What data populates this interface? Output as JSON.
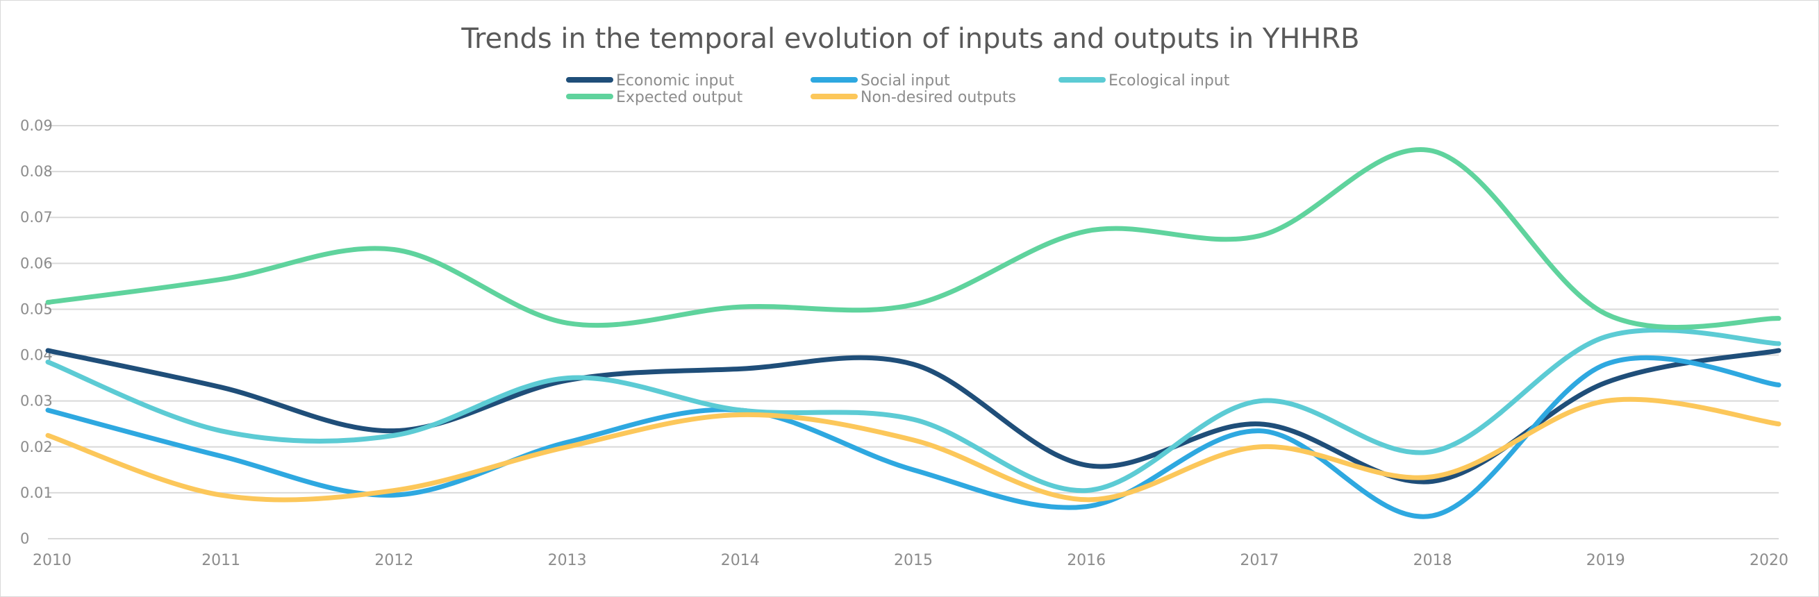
{
  "chart_data": {
    "type": "line",
    "title": "Trends in the temporal evolution of inputs and outputs in YHHRB",
    "xlabel": "",
    "ylabel": "",
    "categories": [
      "2010",
      "2011",
      "2012",
      "2013",
      "2014",
      "2015",
      "2016",
      "2017",
      "2018",
      "2019",
      "2020"
    ],
    "ylim": [
      0,
      0.09
    ],
    "yticks": [
      "0",
      "0.01",
      "0.02",
      "0.03",
      "0.04",
      "0.05",
      "0.06",
      "0.07",
      "0.08",
      "0.09"
    ],
    "grid": true,
    "smooth": true,
    "legend_position": "top",
    "series": [
      {
        "name": "Economic input",
        "color": "#1f4e79",
        "values": [
          0.041,
          0.033,
          0.0235,
          0.0345,
          0.037,
          0.038,
          0.016,
          0.025,
          0.0125,
          0.034,
          0.041
        ]
      },
      {
        "name": "Social input",
        "color": "#2ea8e0",
        "values": [
          0.028,
          0.018,
          0.0095,
          0.021,
          0.028,
          0.015,
          0.007,
          0.0235,
          0.005,
          0.038,
          0.0335
        ]
      },
      {
        "name": "Ecological input",
        "color": "#5ccbd4",
        "values": [
          0.0385,
          0.0235,
          0.0225,
          0.035,
          0.028,
          0.026,
          0.0105,
          0.03,
          0.019,
          0.044,
          0.0425
        ]
      },
      {
        "name": "Expected output",
        "color": "#5fd39d",
        "values": [
          0.0515,
          0.0565,
          0.063,
          0.047,
          0.0505,
          0.051,
          0.067,
          0.066,
          0.0845,
          0.049,
          0.048
        ]
      },
      {
        "name": "Non-desired outputs",
        "color": "#fcc75a",
        "values": [
          0.0225,
          0.0095,
          0.0105,
          0.02,
          0.027,
          0.0215,
          0.0085,
          0.02,
          0.0135,
          0.03,
          0.025
        ]
      }
    ]
  }
}
